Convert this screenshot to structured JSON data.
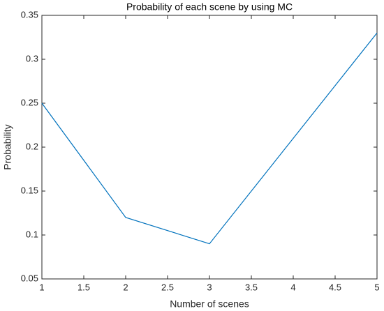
{
  "chart_data": {
    "type": "line",
    "title": "Probability of each scene by using MC",
    "x_label": "Number of scenes",
    "y_label": "Probability",
    "x": [
      1,
      2,
      3,
      4,
      5
    ],
    "series": [
      {
        "name": "Probability",
        "color": "#0072bd",
        "values": [
          0.25,
          0.12,
          0.09,
          0.21,
          0.33
        ]
      }
    ],
    "xlim": [
      1,
      5
    ],
    "xticks": [
      1,
      1.5,
      2,
      2.5,
      3,
      3.5,
      4,
      4.5,
      5
    ],
    "ylim": [
      0.05,
      0.35
    ],
    "yticks": [
      0.05,
      0.1,
      0.15,
      0.2,
      0.25,
      0.3,
      0.35
    ],
    "grid": false
  }
}
